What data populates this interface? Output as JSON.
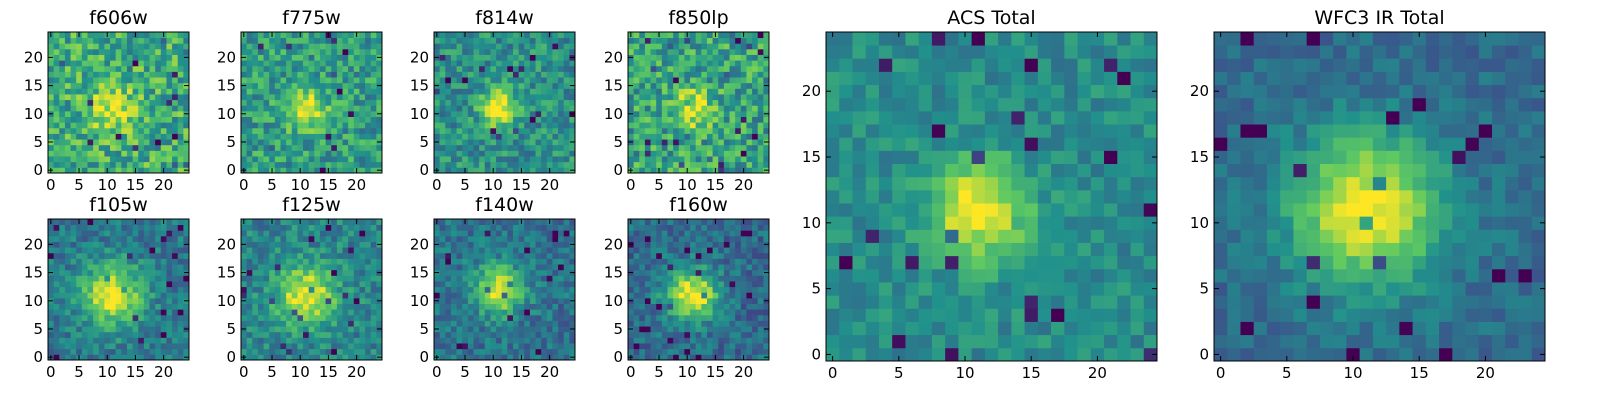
{
  "figure": {
    "colormap": "viridis",
    "image_shape": [
      25,
      25
    ],
    "colormap_stops": [
      "#440154",
      "#3b528b",
      "#21918c",
      "#5ec962",
      "#fde725"
    ],
    "panels": [
      {
        "name": "f606w",
        "title": "f606w",
        "peak": [
          11,
          11
        ],
        "sigma": 3.0,
        "peak_level": 0.3,
        "background": 0.62,
        "noise": 0.45,
        "x_ticks": [
          0,
          5,
          10,
          15,
          20
        ],
        "y_ticks": [
          0,
          5,
          10,
          15,
          20
        ]
      },
      {
        "name": "f775w",
        "title": "f775w",
        "peak": [
          11,
          11
        ],
        "sigma": 2.6,
        "peak_level": 0.45,
        "background": 0.55,
        "noise": 0.4,
        "x_ticks": [
          0,
          5,
          10,
          15,
          20
        ],
        "y_ticks": [
          0,
          5,
          10,
          15,
          20
        ]
      },
      {
        "name": "f814w",
        "title": "f814w",
        "peak": [
          11,
          11
        ],
        "sigma": 2.2,
        "peak_level": 0.55,
        "background": 0.5,
        "noise": 0.35,
        "x_ticks": [
          0,
          5,
          10,
          15,
          20
        ],
        "y_ticks": [
          0,
          5,
          10,
          15,
          20
        ]
      },
      {
        "name": "f850lp",
        "title": "f850lp",
        "peak": [
          11,
          11
        ],
        "sigma": 2.4,
        "peak_level": 0.4,
        "background": 0.58,
        "noise": 0.45,
        "x_ticks": [
          0,
          5,
          10,
          15,
          20
        ],
        "y_ticks": [
          0,
          5,
          10,
          15,
          20
        ]
      },
      {
        "name": "f105w",
        "title": "f105w",
        "peak": [
          11,
          11
        ],
        "sigma": 3.8,
        "peak_level": 0.6,
        "background": 0.4,
        "noise": 0.28,
        "x_ticks": [
          0,
          5,
          10,
          15,
          20
        ],
        "y_ticks": [
          0,
          5,
          10,
          15,
          20
        ]
      },
      {
        "name": "f125w",
        "title": "f125w",
        "peak": [
          11,
          11
        ],
        "sigma": 3.6,
        "peak_level": 0.55,
        "background": 0.45,
        "noise": 0.3,
        "x_ticks": [
          0,
          5,
          10,
          15,
          20
        ],
        "y_ticks": [
          0,
          5,
          10,
          15,
          20
        ]
      },
      {
        "name": "f140w",
        "title": "f140w",
        "peak": [
          11,
          12
        ],
        "sigma": 3.0,
        "peak_level": 0.6,
        "background": 0.38,
        "noise": 0.28,
        "x_ticks": [
          0,
          5,
          10,
          15,
          20
        ],
        "y_ticks": [
          0,
          5,
          10,
          15,
          20
        ]
      },
      {
        "name": "f160w",
        "title": "f160w",
        "peak": [
          11,
          11
        ],
        "sigma": 3.2,
        "peak_level": 0.65,
        "background": 0.35,
        "noise": 0.28,
        "x_ticks": [
          0,
          5,
          10,
          15,
          20
        ],
        "y_ticks": [
          0,
          5,
          10,
          15,
          20
        ]
      },
      {
        "name": "acs-total",
        "title": "ACS Total",
        "peak": [
          11,
          11
        ],
        "sigma": 2.6,
        "peak_level": 0.55,
        "background": 0.48,
        "noise": 0.22,
        "x_ticks": [
          0,
          5,
          10,
          15,
          20
        ],
        "y_ticks": [
          0,
          5,
          10,
          15,
          20
        ]
      },
      {
        "name": "wfc3-ir-total",
        "title": "WFC3 IR Total",
        "peak": [
          11,
          11
        ],
        "sigma": 4.0,
        "peak_level": 0.65,
        "background": 0.35,
        "noise": 0.18,
        "x_ticks": [
          0,
          5,
          10,
          15,
          20
        ],
        "y_ticks": [
          0,
          5,
          10,
          15,
          20
        ]
      }
    ]
  }
}
